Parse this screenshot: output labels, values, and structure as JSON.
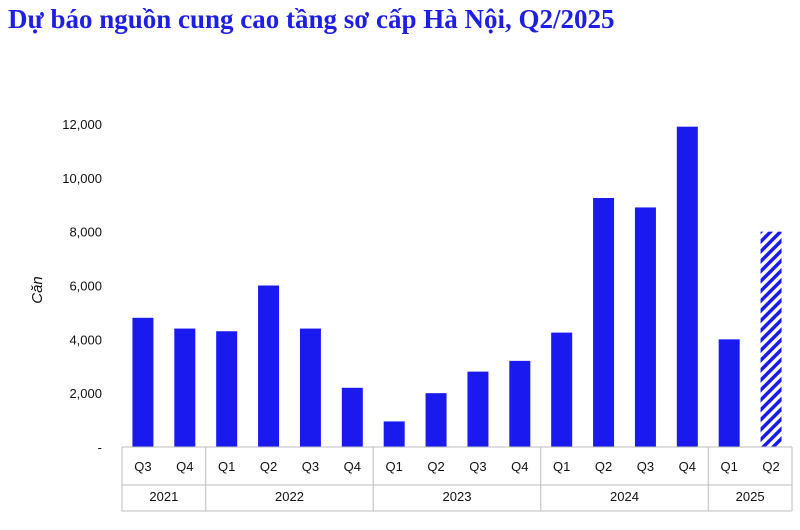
{
  "chart_data": {
    "type": "bar",
    "title": "Dự báo nguồn cung cao tầng sơ cấp Hà Nội, Q2/2025",
    "ylabel": "Căn",
    "xlabel": "",
    "ylim": [
      0,
      12000
    ],
    "yticks": [
      "-",
      "2,000",
      "4,000",
      "6,000",
      "8,000",
      "10,000",
      "12,000"
    ],
    "ytick_values": [
      0,
      2000,
      4000,
      6000,
      8000,
      10000,
      12000
    ],
    "grid": false,
    "bar_color": "#1a1aef",
    "forecast_pattern": "diagonal-hatch",
    "categories": [
      {
        "quarter": "Q3",
        "year": "2021"
      },
      {
        "quarter": "Q4",
        "year": "2021"
      },
      {
        "quarter": "Q1",
        "year": "2022"
      },
      {
        "quarter": "Q2",
        "year": "2022"
      },
      {
        "quarter": "Q3",
        "year": "2022"
      },
      {
        "quarter": "Q4",
        "year": "2022"
      },
      {
        "quarter": "Q1",
        "year": "2023"
      },
      {
        "quarter": "Q2",
        "year": "2023"
      },
      {
        "quarter": "Q3",
        "year": "2023"
      },
      {
        "quarter": "Q4",
        "year": "2023"
      },
      {
        "quarter": "Q1",
        "year": "2024"
      },
      {
        "quarter": "Q2",
        "year": "2024"
      },
      {
        "quarter": "Q3",
        "year": "2024"
      },
      {
        "quarter": "Q4",
        "year": "2024"
      },
      {
        "quarter": "Q1",
        "year": "2025"
      },
      {
        "quarter": "Q2",
        "year": "2025"
      }
    ],
    "values": [
      4800,
      4400,
      4300,
      6000,
      4400,
      2200,
      950,
      2000,
      2800,
      3200,
      4250,
      9250,
      8900,
      11900,
      4000,
      8000
    ],
    "forecast": [
      false,
      false,
      false,
      false,
      false,
      false,
      false,
      false,
      false,
      false,
      false,
      false,
      false,
      false,
      false,
      true
    ],
    "year_groups": [
      "2021",
      "2022",
      "2023",
      "2024",
      "2025"
    ]
  }
}
